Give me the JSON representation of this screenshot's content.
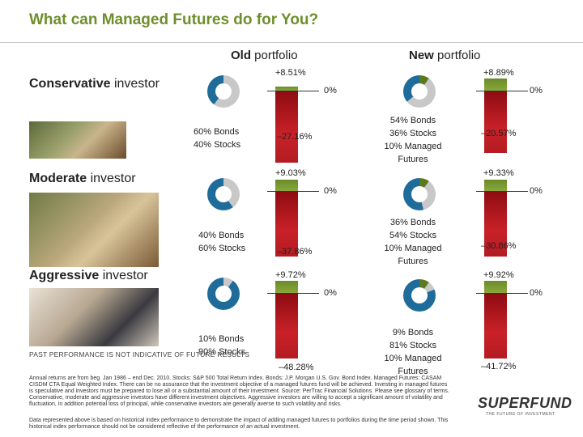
{
  "title": "What can Managed Futures do for You?",
  "columns": {
    "old_bold": "Old",
    "old_rest": " portfolio",
    "new_bold": "New",
    "new_rest": " portfolio"
  },
  "rows": [
    {
      "label_bold": "Conservative",
      "label_rest": " investor",
      "old_alloc": [
        "60% Bonds",
        "40% Stocks"
      ],
      "new_alloc": [
        "54% Bonds",
        "36% Stocks",
        "10% Managed",
        "Futures"
      ],
      "old_best": "+8.51%",
      "old_worst": "–27.16%",
      "new_best": "+8.89%",
      "new_worst": "–20.57%",
      "zero": "0%"
    },
    {
      "label_bold": "Moderate",
      "label_rest": " investor",
      "old_alloc": [
        "40% Bonds",
        "60% Stocks"
      ],
      "new_alloc": [
        "36% Bonds",
        "54% Stocks",
        "10% Managed",
        "Futures"
      ],
      "old_best": "+9.03%",
      "old_worst": "–37.86%",
      "new_best": "+9.33%",
      "new_worst": "–30.86%",
      "zero": "0%"
    },
    {
      "label_bold": "Aggressive",
      "label_rest": " investor",
      "old_alloc": [
        "10% Bonds",
        "90% Stocks"
      ],
      "new_alloc": [
        "9% Bonds",
        "81% Stocks",
        "10% Managed",
        "Futures"
      ],
      "old_best": "+9.72%",
      "old_worst": "–48.28%",
      "new_best": "+9.92%",
      "new_worst": "–41.72%",
      "zero": "0%"
    }
  ],
  "disclaimer": "PAST PERFORMANCE IS NOT INDICATIVE OF FUTURE RESULTS",
  "notes": {
    "n1": "Annual returns are from beg. Jan 1986 – end Dec. 2010. Stocks: S&P 500 Total Return Index. Bonds: J.P. Morgan U.S. Gov. Bond Index. Managed Futures: CASAM CISDM CTA Equal Weighted Index. There can be no assurance that the investment objective of a managed futures fund will be achieved. Investing in managed futures is speculative and investors must be prepared to lose all or a substantial amount of their investment. Source: PerTrac Financial Solutions. Please see glossary of terms. Conservative, moderate and aggressive investors have different investment objectives. Aggressive investors are willing to accept a significant amount of volatility and fluctuation, in addition potential loss of principal, while conservative investors are generally averse to such volatility and risks.",
    "n2": "Data represented above is based on historical index performance to demonstrate the impact of adding managed futures to portfolios during the time period shown. This historical index performance should not be considered reflective of the performance of an actual investment."
  },
  "logo": {
    "text": "SUPERFUND",
    "tagline": "THE FUTURE OF INVESTMENT"
  },
  "colors": {
    "title": "#6e8f2c",
    "positive": "#7a9a32",
    "negative": "#c21e26",
    "bonds": "#c8c8c8",
    "stocks": "#1f6c9a",
    "managed": "#5b7a1e"
  }
}
